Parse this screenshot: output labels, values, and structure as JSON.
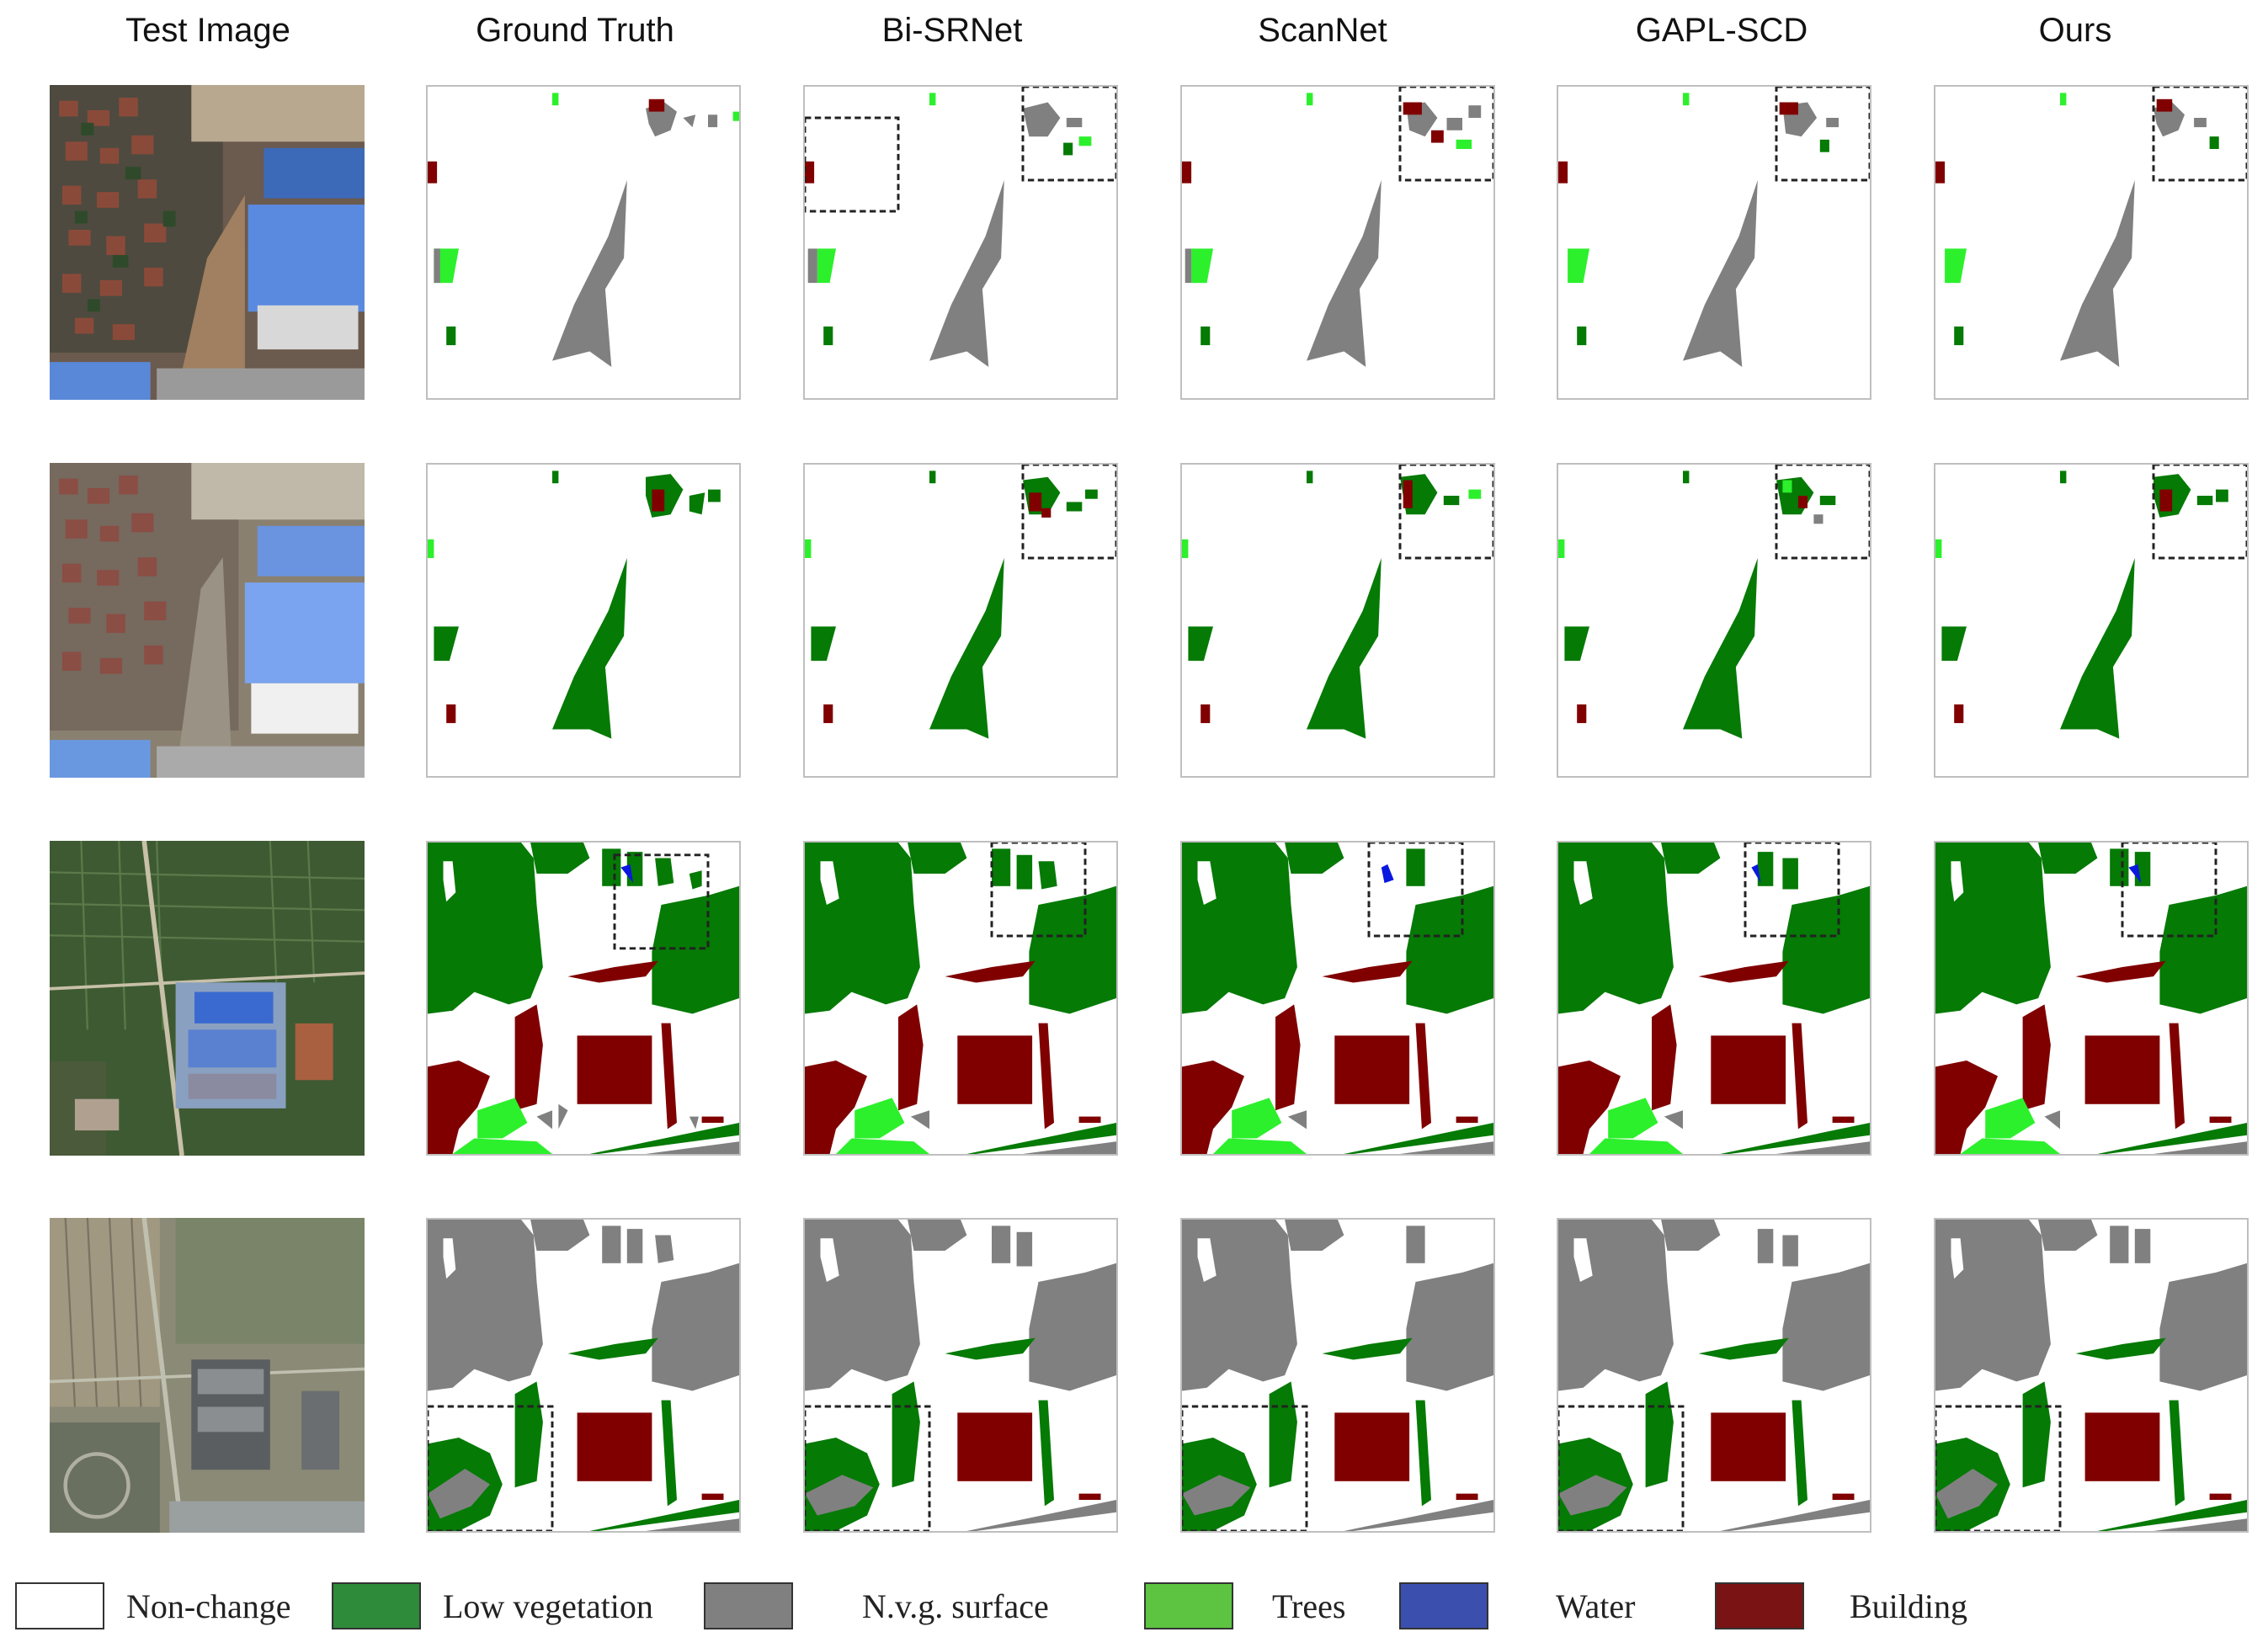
{
  "columns": [
    "Test Image",
    "Ground Truth",
    "Bi-SRNet",
    "ScanNet",
    "GAPL-SCD",
    "Ours"
  ],
  "legend": [
    {
      "label": "Non-change",
      "color": "#ffffff"
    },
    {
      "label": "Low vegetation",
      "color": "#2e8b3a"
    },
    {
      "label": "N.v.g. surface",
      "color": "#808080"
    },
    {
      "label": "Trees",
      "color": "#5cc440"
    },
    {
      "label": "Water",
      "color": "#3b4fae"
    },
    {
      "label": "Building",
      "color": "#7a1414"
    }
  ],
  "colors": {
    "low_vegetation": "#057a05",
    "nvg_surface": "#808080",
    "trees": "#2cf02c",
    "water": "#0a18e0",
    "building": "#800000",
    "non_change": "#ffffff"
  }
}
